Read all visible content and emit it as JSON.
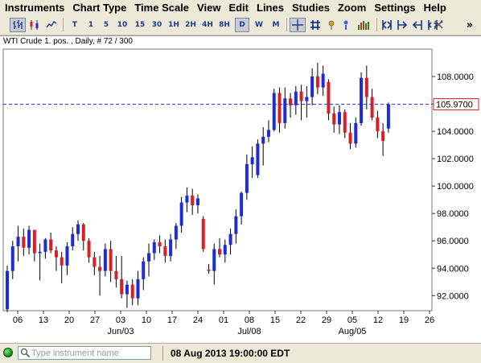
{
  "menu": [
    "Instruments",
    "Chart Type",
    "Time Scale",
    "View",
    "Edit",
    "Lines",
    "Studies",
    "Zoom",
    "Settings",
    "Help"
  ],
  "toolbar": {
    "chart_type_icons": [
      "bar-chart-icon",
      "candlestick-icon",
      "line-chart-icon"
    ],
    "timeframes": [
      "T",
      "1",
      "5",
      "10",
      "15",
      "30",
      "1H",
      "2H",
      "4H",
      "8H",
      "D",
      "W",
      "M"
    ],
    "active_timeframe": "D",
    "tool_icons": [
      "crosshair-icon",
      "grid-icon",
      "dividend-icon",
      "info-icon",
      "volume-icon",
      "zoom-fit-icon",
      "zoom-in-icon",
      "zoom-out-icon",
      "zoom-range-icon",
      "tools-icon"
    ],
    "more_label": "»"
  },
  "chart": {
    "title": "WTI Crude 1. pos. , Daily, # 72 / 300",
    "current_price_label": "105.9700"
  },
  "chart_data": {
    "type": "candlestick",
    "title": "WTI Crude 1. pos. , Daily, # 72 / 300",
    "y_ticks": [
      "92.0000",
      "94.0000",
      "96.0000",
      "98.0000",
      "100.0000",
      "102.0000",
      "104.0000",
      "106.0000",
      "108.0000"
    ],
    "y_range": [
      90.9,
      110.0
    ],
    "x_ticks": [
      "06",
      "13",
      "20",
      "27",
      "03",
      "10",
      "17",
      "24",
      "01",
      "08",
      "15",
      "22",
      "29",
      "05",
      "12",
      "19",
      "26"
    ],
    "x_month_labels": [
      {
        "label": "Jun/03",
        "at_tick": 4
      },
      {
        "label": "Jul/08",
        "at_tick": 9
      },
      {
        "label": "Aug/05",
        "at_tick": 13
      }
    ],
    "current_price": 105.97,
    "up_color": "#1f2bd6",
    "down_color": "#d81f26",
    "candles": [
      {
        "o": 91.0,
        "h": 94.2,
        "l": 90.8,
        "c": 93.8
      },
      {
        "o": 93.8,
        "h": 96.0,
        "l": 93.2,
        "c": 95.6
      },
      {
        "o": 95.6,
        "h": 97.1,
        "l": 94.5,
        "c": 96.3
      },
      {
        "o": 96.3,
        "h": 96.9,
        "l": 94.9,
        "c": 95.5
      },
      {
        "o": 95.5,
        "h": 97.1,
        "l": 95.0,
        "c": 96.8
      },
      {
        "o": 96.8,
        "h": 96.8,
        "l": 94.5,
        "c": 95.1
      },
      {
        "o": 95.1,
        "h": 95.8,
        "l": 93.1,
        "c": 95.2
      },
      {
        "o": 95.2,
        "h": 96.2,
        "l": 94.7,
        "c": 96.1
      },
      {
        "o": 96.1,
        "h": 96.6,
        "l": 95.1,
        "c": 95.3
      },
      {
        "o": 95.3,
        "h": 95.6,
        "l": 93.8,
        "c": 94.8
      },
      {
        "o": 94.8,
        "h": 95.2,
        "l": 92.9,
        "c": 94.2
      },
      {
        "o": 94.2,
        "h": 95.9,
        "l": 93.5,
        "c": 95.6
      },
      {
        "o": 95.6,
        "h": 97.0,
        "l": 95.3,
        "c": 96.5
      },
      {
        "o": 96.5,
        "h": 97.5,
        "l": 96.0,
        "c": 97.2
      },
      {
        "o": 97.2,
        "h": 97.3,
        "l": 95.3,
        "c": 96.0
      },
      {
        "o": 96.0,
        "h": 96.2,
        "l": 94.4,
        "c": 94.8
      },
      {
        "o": 94.8,
        "h": 95.2,
        "l": 93.5,
        "c": 94.1
      },
      {
        "o": 94.1,
        "h": 94.9,
        "l": 92.0,
        "c": 93.8
      },
      {
        "o": 93.8,
        "h": 95.8,
        "l": 93.4,
        "c": 95.4
      },
      {
        "o": 95.4,
        "h": 96.0,
        "l": 93.0,
        "c": 93.8
      },
      {
        "o": 93.8,
        "h": 94.9,
        "l": 92.6,
        "c": 93.2
      },
      {
        "o": 93.2,
        "h": 94.9,
        "l": 91.8,
        "c": 92.1
      },
      {
        "o": 92.1,
        "h": 93.1,
        "l": 91.1,
        "c": 92.8
      },
      {
        "o": 92.8,
        "h": 93.2,
        "l": 91.3,
        "c": 91.8
      },
      {
        "o": 91.8,
        "h": 93.8,
        "l": 91.3,
        "c": 93.2
      },
      {
        "o": 93.2,
        "h": 94.8,
        "l": 92.4,
        "c": 94.5
      },
      {
        "o": 94.5,
        "h": 95.8,
        "l": 93.4,
        "c": 95.1
      },
      {
        "o": 95.1,
        "h": 96.1,
        "l": 94.6,
        "c": 95.9
      },
      {
        "o": 95.9,
        "h": 96.4,
        "l": 95.1,
        "c": 95.6
      },
      {
        "o": 95.6,
        "h": 96.1,
        "l": 94.4,
        "c": 94.9
      },
      {
        "o": 94.9,
        "h": 96.5,
        "l": 94.5,
        "c": 96.1
      },
      {
        "o": 96.1,
        "h": 97.3,
        "l": 95.4,
        "c": 97.1
      },
      {
        "o": 97.1,
        "h": 99.2,
        "l": 96.6,
        "c": 98.8
      },
      {
        "o": 98.8,
        "h": 99.9,
        "l": 98.1,
        "c": 99.3
      },
      {
        "o": 99.3,
        "h": 99.8,
        "l": 97.9,
        "c": 98.6
      },
      {
        "o": 98.6,
        "h": 99.4,
        "l": 98.0,
        "c": 99.1
      },
      {
        "o": 97.6,
        "h": 97.8,
        "l": 95.2,
        "c": 95.4
      },
      {
        "o": 93.9,
        "h": 94.3,
        "l": 93.6,
        "c": 93.8
      },
      {
        "o": 93.8,
        "h": 95.8,
        "l": 92.8,
        "c": 95.4
      },
      {
        "o": 95.4,
        "h": 96.2,
        "l": 94.8,
        "c": 95.0
      },
      {
        "o": 95.0,
        "h": 96.1,
        "l": 94.4,
        "c": 95.7
      },
      {
        "o": 95.7,
        "h": 96.9,
        "l": 95.0,
        "c": 96.5
      },
      {
        "o": 96.5,
        "h": 98.3,
        "l": 95.8,
        "c": 97.8
      },
      {
        "o": 97.8,
        "h": 99.6,
        "l": 97.2,
        "c": 99.5
      },
      {
        "o": 99.5,
        "h": 102.3,
        "l": 99.0,
        "c": 101.6
      },
      {
        "o": 101.6,
        "h": 102.9,
        "l": 100.6,
        "c": 102.1
      },
      {
        "o": 100.8,
        "h": 103.4,
        "l": 100.6,
        "c": 103.1
      },
      {
        "o": 103.1,
        "h": 104.3,
        "l": 101.5,
        "c": 103.6
      },
      {
        "o": 103.6,
        "h": 104.8,
        "l": 103.2,
        "c": 104.1
      },
      {
        "o": 104.1,
        "h": 107.1,
        "l": 104.0,
        "c": 106.8
      },
      {
        "o": 106.8,
        "h": 107.2,
        "l": 103.9,
        "c": 104.6
      },
      {
        "o": 104.6,
        "h": 107.2,
        "l": 104.2,
        "c": 106.4
      },
      {
        "o": 106.4,
        "h": 106.8,
        "l": 105.0,
        "c": 105.9
      },
      {
        "o": 105.9,
        "h": 107.3,
        "l": 105.2,
        "c": 106.9
      },
      {
        "o": 106.9,
        "h": 107.4,
        "l": 104.8,
        "c": 106.2
      },
      {
        "o": 106.2,
        "h": 107.3,
        "l": 105.0,
        "c": 106.5
      },
      {
        "o": 106.5,
        "h": 108.6,
        "l": 105.9,
        "c": 108.0
      },
      {
        "o": 108.0,
        "h": 109.0,
        "l": 106.7,
        "c": 107.2
      },
      {
        "o": 107.2,
        "h": 108.8,
        "l": 106.6,
        "c": 108.2
      },
      {
        "o": 107.6,
        "h": 107.8,
        "l": 104.8,
        "c": 105.3
      },
      {
        "o": 105.3,
        "h": 105.8,
        "l": 103.9,
        "c": 104.5
      },
      {
        "o": 104.5,
        "h": 105.9,
        "l": 103.8,
        "c": 105.4
      },
      {
        "o": 105.4,
        "h": 105.6,
        "l": 103.5,
        "c": 103.9
      },
      {
        "o": 103.9,
        "h": 104.6,
        "l": 102.7,
        "c": 103.1
      },
      {
        "o": 103.1,
        "h": 105.0,
        "l": 102.8,
        "c": 104.6
      },
      {
        "o": 104.6,
        "h": 108.3,
        "l": 104.4,
        "c": 107.9
      },
      {
        "o": 107.9,
        "h": 108.8,
        "l": 105.6,
        "c": 106.5
      },
      {
        "o": 106.5,
        "h": 107.1,
        "l": 104.8,
        "c": 105.0
      },
      {
        "o": 105.0,
        "h": 105.5,
        "l": 103.5,
        "c": 104.0
      },
      {
        "o": 104.0,
        "h": 104.6,
        "l": 102.2,
        "c": 103.3
      },
      {
        "o": 104.2,
        "h": 106.1,
        "l": 103.9,
        "c": 105.97
      }
    ]
  },
  "status": {
    "search_placeholder": "Type instrument name",
    "datetime": "08 Aug 2013 19:00:00 EDT"
  }
}
